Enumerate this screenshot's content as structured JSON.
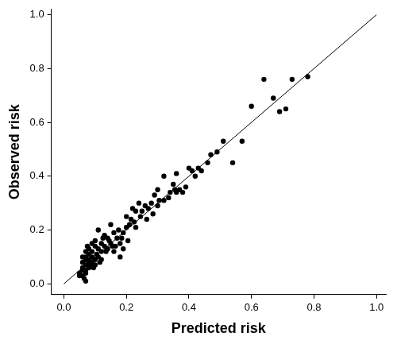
{
  "chart_data": {
    "type": "scatter",
    "x_label": "Predicted risk",
    "y_label": "Observed risk",
    "xlim": [
      -0.04,
      1.03
    ],
    "ylim": [
      -0.04,
      1.02
    ],
    "xticks": [
      {
        "value": 0,
        "label": "0.0"
      },
      0.2,
      0.4,
      0.6,
      0.8,
      {
        "value": 1,
        "label": "1.0"
      }
    ],
    "yticks": [
      {
        "value": 0,
        "label": "0.0"
      },
      0.2,
      0.4,
      0.6,
      0.8,
      {
        "value": 1,
        "label": "1.0"
      }
    ],
    "grid": false,
    "series": [
      {
        "type": "scatter",
        "color": "#000000",
        "marker": "circle",
        "x": [
          0.78,
          0.73,
          0.71,
          0.69,
          0.67,
          0.64,
          0.6,
          0.57,
          0.54,
          0.51,
          0.49,
          0.46,
          0.43,
          0.41,
          0.4,
          0.39,
          0.37,
          0.36,
          0.35,
          0.34,
          0.32,
          0.32,
          0.3,
          0.29,
          0.28,
          0.27,
          0.26,
          0.25,
          0.24,
          0.23,
          0.22,
          0.21,
          0.2,
          0.2,
          0.19,
          0.18,
          0.18,
          0.17,
          0.16,
          0.16,
          0.15,
          0.15,
          0.14,
          0.14,
          0.13,
          0.13,
          0.12,
          0.12,
          0.12,
          0.11,
          0.11,
          0.11,
          0.1,
          0.1,
          0.1,
          0.1,
          0.09,
          0.09,
          0.09,
          0.09,
          0.08,
          0.08,
          0.08,
          0.08,
          0.08,
          0.07,
          0.07,
          0.07,
          0.07,
          0.07,
          0.07,
          0.06,
          0.06,
          0.06,
          0.06,
          0.06,
          0.05,
          0.05,
          0.07,
          0.065,
          0.075,
          0.085,
          0.095,
          0.105,
          0.115,
          0.125,
          0.135,
          0.145,
          0.155,
          0.165,
          0.175,
          0.185,
          0.205,
          0.215,
          0.225,
          0.245,
          0.265,
          0.285,
          0.305,
          0.335,
          0.355,
          0.38,
          0.42,
          0.44,
          0.47,
          0.36,
          0.3,
          0.23,
          0.19
        ],
        "values": [
          0.77,
          0.76,
          0.65,
          0.64,
          0.69,
          0.76,
          0.66,
          0.53,
          0.45,
          0.53,
          0.49,
          0.45,
          0.43,
          0.42,
          0.43,
          0.36,
          0.35,
          0.34,
          0.37,
          0.34,
          0.4,
          0.31,
          0.29,
          0.33,
          0.3,
          0.28,
          0.29,
          0.27,
          0.3,
          0.27,
          0.28,
          0.22,
          0.21,
          0.25,
          0.19,
          0.15,
          0.1,
          0.17,
          0.19,
          0.12,
          0.15,
          0.22,
          0.17,
          0.13,
          0.14,
          0.18,
          0.12,
          0.09,
          0.15,
          0.13,
          0.1,
          0.2,
          0.09,
          0.14,
          0.16,
          0.07,
          0.12,
          0.08,
          0.1,
          0.15,
          0.06,
          0.09,
          0.11,
          0.13,
          0.08,
          0.05,
          0.07,
          0.09,
          0.1,
          0.12,
          0.04,
          0.03,
          0.06,
          0.08,
          0.05,
          0.1,
          0.03,
          0.04,
          0.01,
          0.02,
          0.14,
          0.07,
          0.06,
          0.11,
          0.08,
          0.17,
          0.12,
          0.16,
          0.14,
          0.14,
          0.2,
          0.17,
          0.16,
          0.24,
          0.23,
          0.25,
          0.24,
          0.26,
          0.31,
          0.32,
          0.35,
          0.34,
          0.4,
          0.42,
          0.48,
          0.41,
          0.35,
          0.21,
          0.13
        ]
      },
      {
        "type": "line",
        "color": "#000000",
        "line_style": "solid",
        "x": [
          0,
          1
        ],
        "values": [
          0,
          1
        ]
      }
    ]
  }
}
